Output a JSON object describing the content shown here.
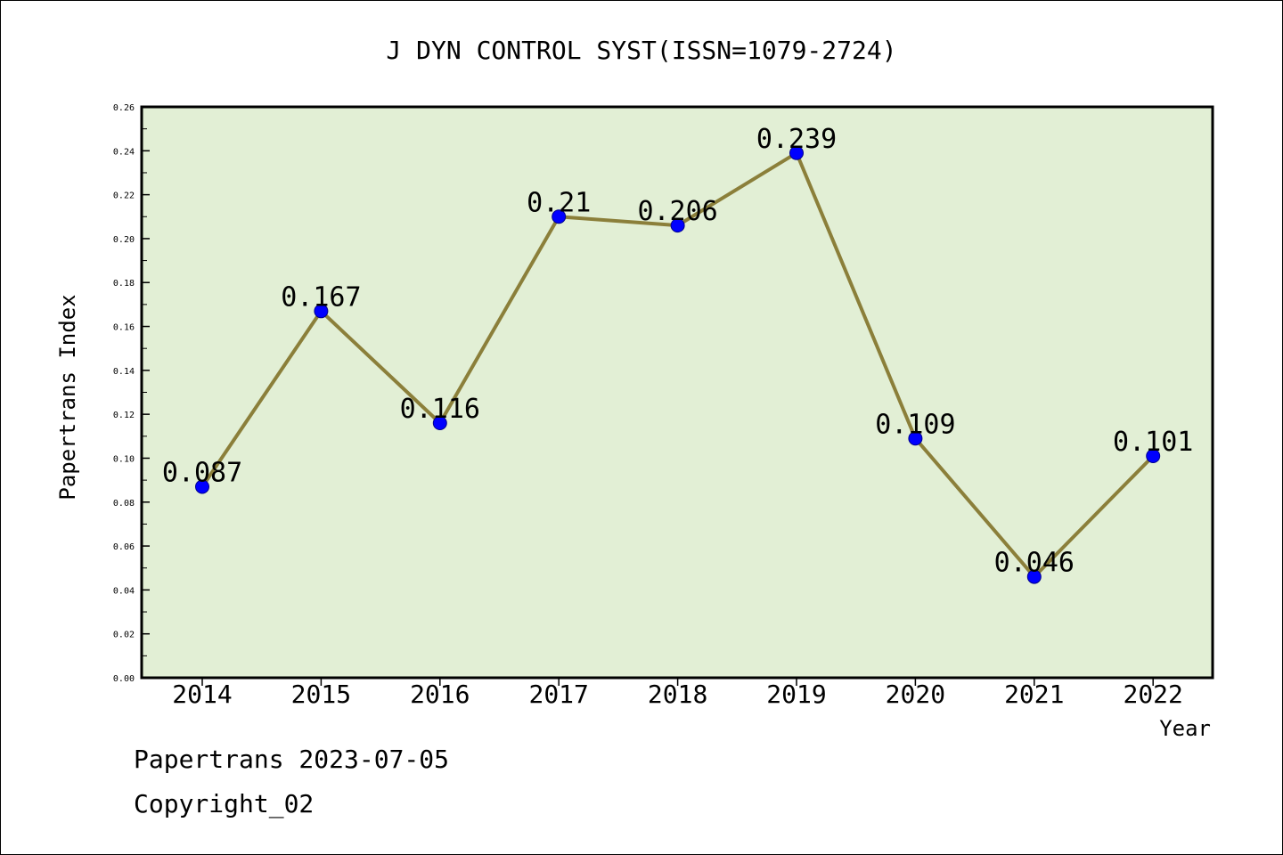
{
  "chart_data": {
    "type": "line",
    "title": "J DYN CONTROL SYST(ISSN=1079-2724)",
    "xlabel": "Year",
    "ylabel": "Papertrans Index",
    "categories": [
      "2014",
      "2015",
      "2016",
      "2017",
      "2018",
      "2019",
      "2020",
      "2021",
      "2022"
    ],
    "values": [
      0.087,
      0.167,
      0.116,
      0.21,
      0.206,
      0.239,
      0.109,
      0.046,
      0.101
    ],
    "data_labels": [
      "0.087",
      "0.167",
      "0.116",
      "0.21",
      "0.206",
      "0.239",
      "0.109",
      "0.046",
      "0.101"
    ],
    "ylim": [
      0,
      0.26
    ],
    "yticks": [
      "0.00",
      "0.02",
      "0.04",
      "0.06",
      "0.08",
      "0.10",
      "0.12",
      "0.14",
      "0.16",
      "0.18",
      "0.20",
      "0.22",
      "0.24",
      "0.26"
    ],
    "grid": false,
    "legend": "none",
    "colors": {
      "plot_background": "#e2efd5",
      "line": "#8b7f3a",
      "marker": "#0000ff"
    }
  },
  "footer": {
    "source": "Papertrans 2023-07-05",
    "copyright": "Copyright_02"
  }
}
